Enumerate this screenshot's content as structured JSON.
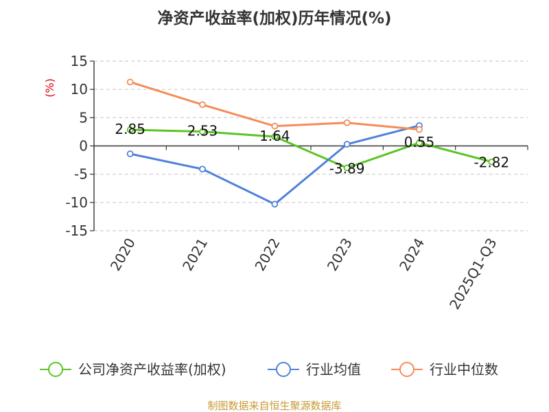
{
  "chart_data": {
    "type": "line",
    "title": "净资产收益率(加权)历年情况(%)",
    "y_unit": "(%)",
    "categories": [
      "2020",
      "2021",
      "2022",
      "2023",
      "2024",
      "2025Q1-Q3"
    ],
    "ylim": [
      -15,
      15
    ],
    "yticks": [
      15,
      10,
      5,
      0,
      -5,
      -10,
      -15
    ],
    "grid": true,
    "legend_position": "bottom",
    "series": [
      {
        "name": "公司净资产收益率(加权)",
        "color": "#5bc424",
        "values": [
          2.85,
          2.53,
          1.64,
          -3.89,
          0.55,
          -2.82
        ],
        "labels": [
          "2.85",
          "2.53",
          "1.64",
          "-3.89",
          "0.55",
          "-2.82"
        ]
      },
      {
        "name": "行业均值",
        "color": "#4f82d8",
        "values": [
          -1.4,
          -4.1,
          -10.3,
          0.3,
          3.6,
          null
        ]
      },
      {
        "name": "行业中位数",
        "color": "#f58b57",
        "values": [
          11.3,
          7.3,
          3.5,
          4.1,
          2.9,
          null
        ]
      }
    ]
  },
  "footer": {
    "source": "制图数据来自恒生聚源数据库"
  }
}
